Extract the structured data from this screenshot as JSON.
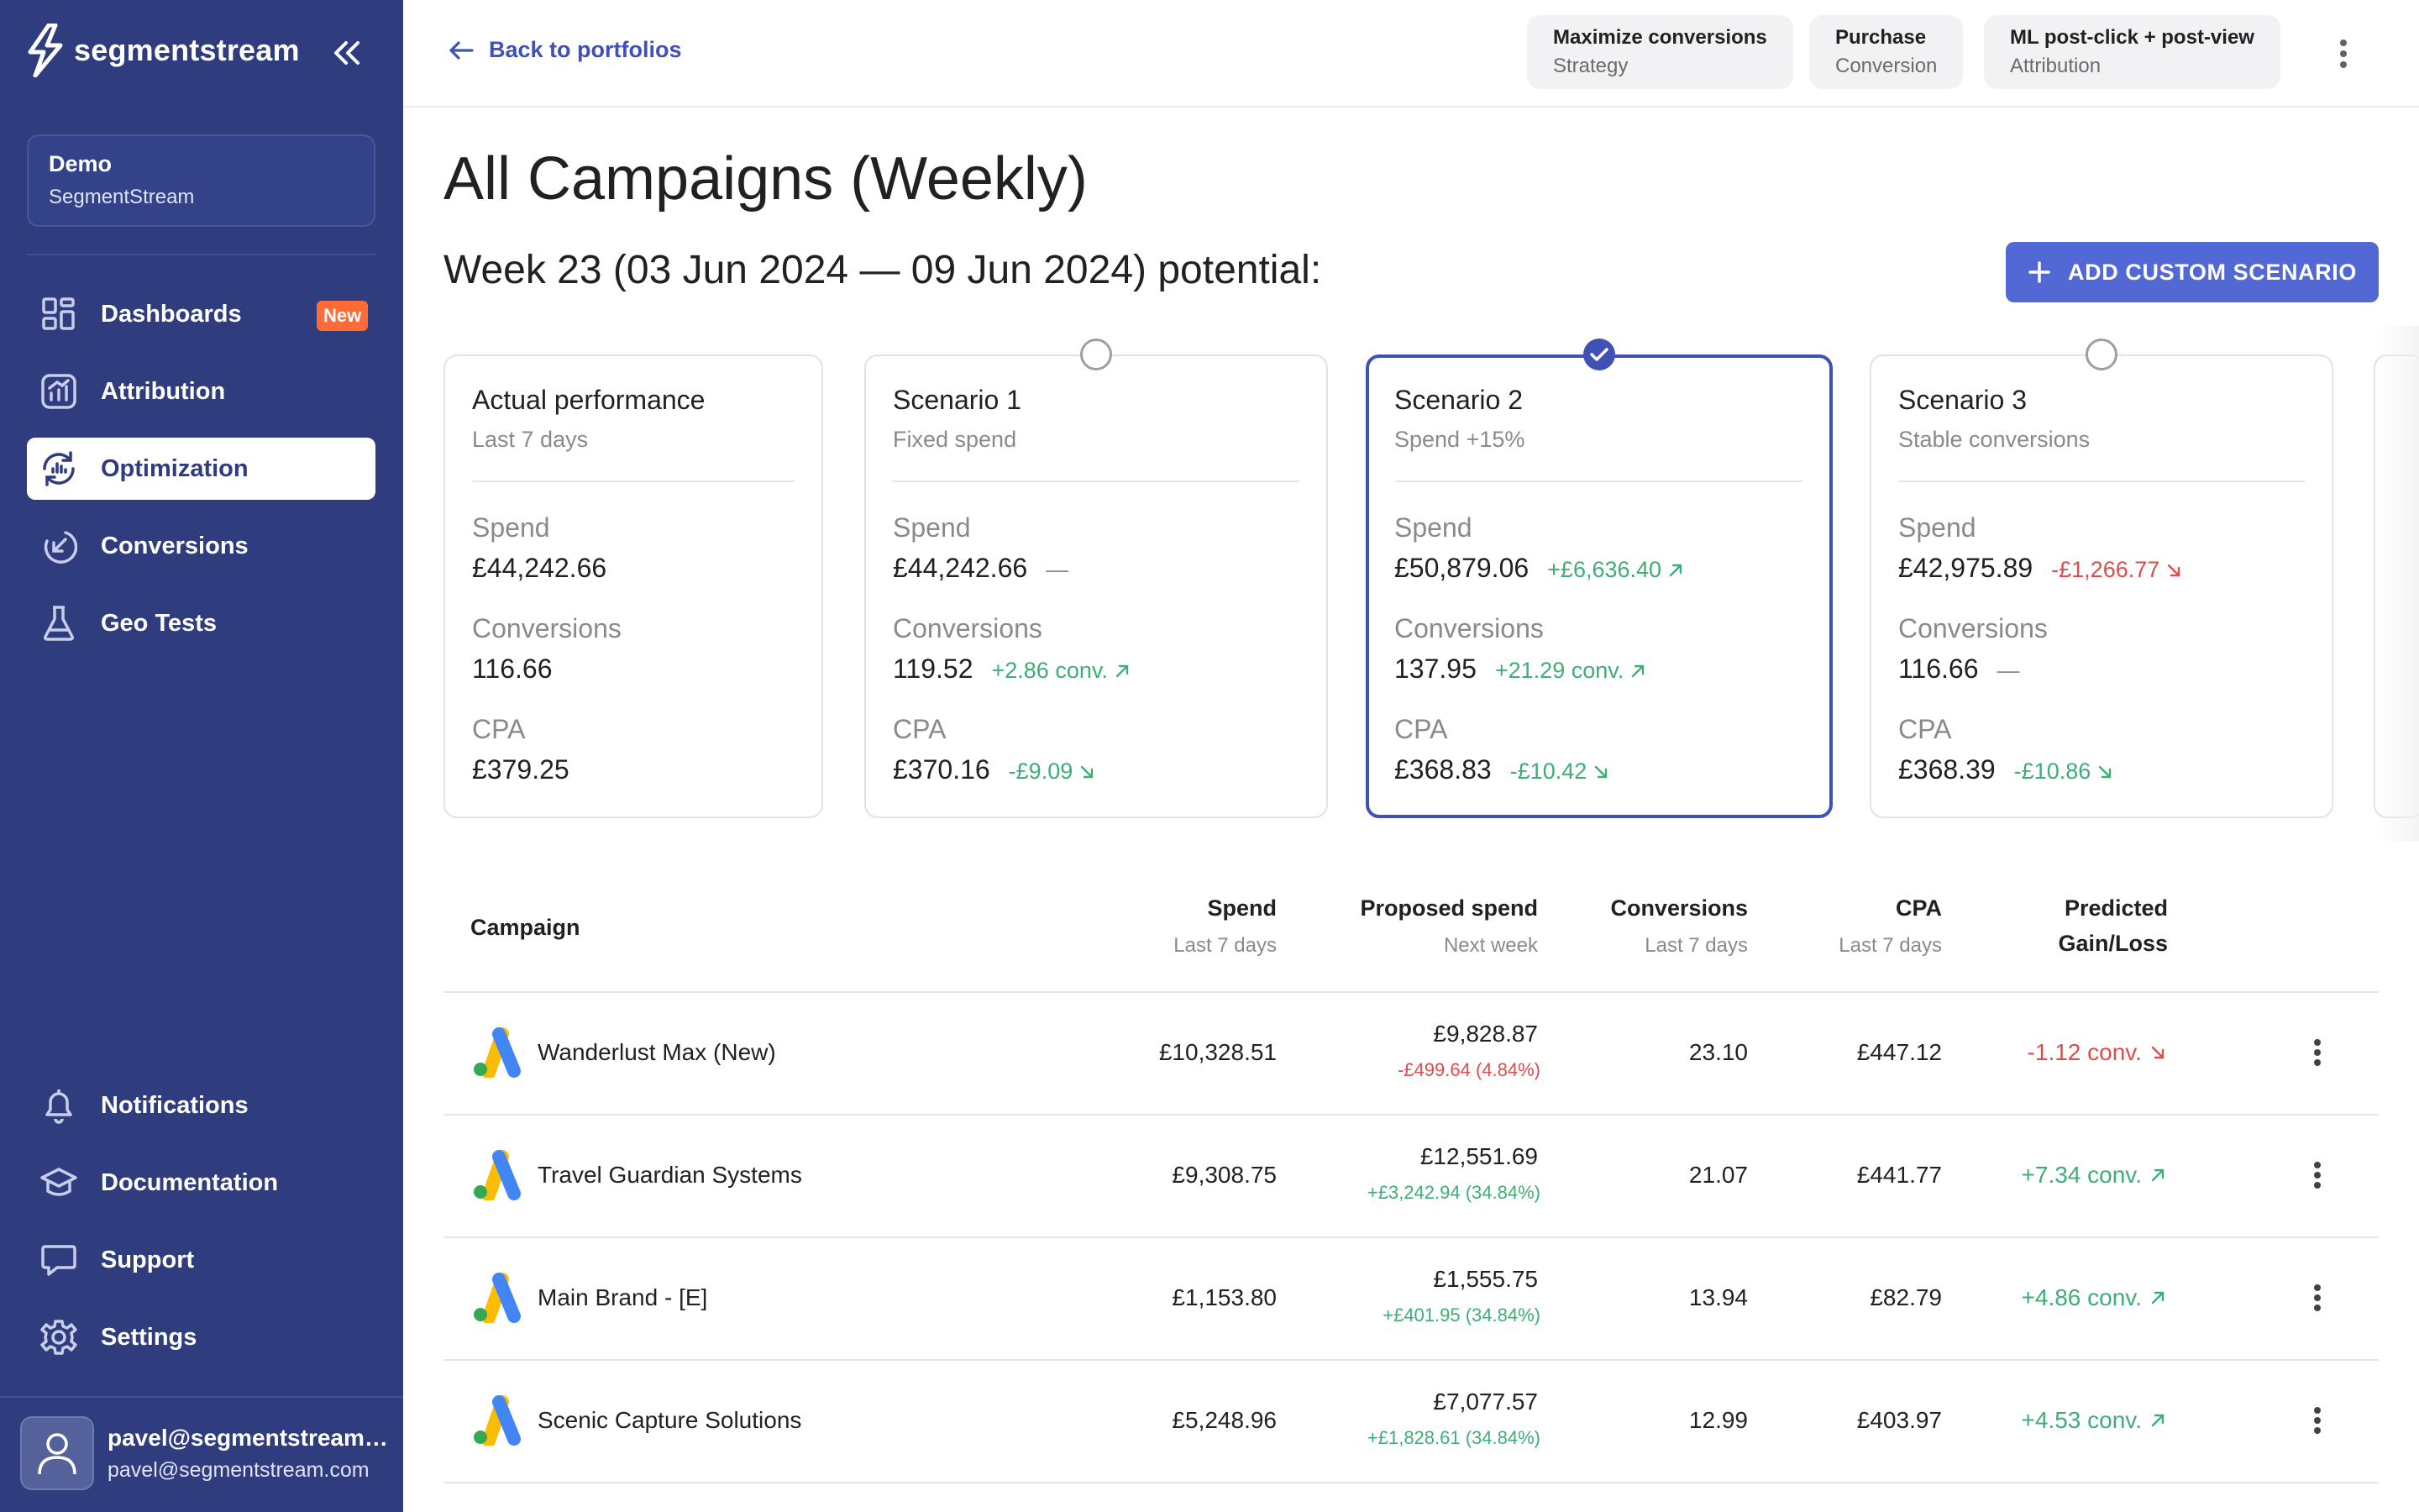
{
  "app": {
    "logo_text": "segmentstream",
    "workspace": {
      "name": "Demo",
      "org": "SegmentStream"
    },
    "nav_top": [
      {
        "label": "Dashboards",
        "icon": "dashboard-grid-icon",
        "badge": "New",
        "active": false
      },
      {
        "label": "Attribution",
        "icon": "attribution-chart-icon",
        "active": false
      },
      {
        "label": "Optimization",
        "icon": "optimization-cycle-icon",
        "active": true
      },
      {
        "label": "Conversions",
        "icon": "conversions-arrow-icon",
        "active": false
      },
      {
        "label": "Geo Tests",
        "icon": "flask-icon",
        "active": false
      }
    ],
    "nav_bottom": [
      {
        "label": "Notifications",
        "icon": "bell-icon"
      },
      {
        "label": "Documentation",
        "icon": "graduation-cap-icon"
      },
      {
        "label": "Support",
        "icon": "chat-bubble-icon"
      },
      {
        "label": "Settings",
        "icon": "gear-icon"
      }
    ],
    "user": {
      "name": "pavel@segmentstream.com",
      "email": "pavel@segmentstream.com"
    }
  },
  "topbar": {
    "back_label": "Back to portfolios",
    "chips": [
      {
        "title": "Maximize conversions",
        "sub": "Strategy"
      },
      {
        "title": "Purchase",
        "sub": "Conversion"
      },
      {
        "title": "ML post-click + post-view",
        "sub": "Attribution"
      }
    ]
  },
  "page": {
    "title": "All Campaigns (Weekly)",
    "subtitle": "Week 23 (03 Jun 2024 — 09 Jun 2024) potential:",
    "add_button": "ADD CUSTOM SCENARIO"
  },
  "metric_labels": {
    "spend": "Spend",
    "conversions": "Conversions",
    "cpa": "CPA"
  },
  "scenarios": [
    {
      "title": "Actual performance",
      "sub": "Last 7 days",
      "spend": "£44,242.66",
      "spend_delta": "",
      "spend_dir": "",
      "conversions": "116.66",
      "conv_delta": "",
      "conv_dir": "",
      "cpa": "£379.25",
      "cpa_delta": "",
      "cpa_dir": "",
      "selectable": false,
      "selected": false
    },
    {
      "title": "Scenario 1",
      "sub": "Fixed spend",
      "spend": "£44,242.66",
      "spend_delta": "—",
      "spend_dir": "flat",
      "conversions": "119.52",
      "conv_delta": "+2.86 conv.",
      "conv_dir": "up-good",
      "cpa": "£370.16",
      "cpa_delta": "-£9.09",
      "cpa_dir": "down-good",
      "selectable": true,
      "selected": false
    },
    {
      "title": "Scenario 2",
      "sub": "Spend +15%",
      "spend": "£50,879.06",
      "spend_delta": "+£6,636.40",
      "spend_dir": "up-good",
      "conversions": "137.95",
      "conv_delta": "+21.29 conv.",
      "conv_dir": "up-good",
      "cpa": "£368.83",
      "cpa_delta": "-£10.42",
      "cpa_dir": "down-good",
      "selectable": true,
      "selected": true
    },
    {
      "title": "Scenario 3",
      "sub": "Stable conversions",
      "spend": "£42,975.89",
      "spend_delta": "-£1,266.77",
      "spend_dir": "down-bad",
      "conversions": "116.66",
      "conv_delta": "—",
      "conv_dir": "flat",
      "cpa": "£368.39",
      "cpa_delta": "-£10.86",
      "cpa_dir": "down-good",
      "selectable": true,
      "selected": false
    }
  ],
  "table": {
    "headers": {
      "campaign": "Campaign",
      "spend": "Spend",
      "spend_sub": "Last 7 days",
      "proposed": "Proposed spend",
      "proposed_sub": "Next week",
      "conversions": "Conversions",
      "conversions_sub": "Last 7 days",
      "cpa": "CPA",
      "cpa_sub": "Last 7 days",
      "gain_line1": "Predicted",
      "gain_line2": "Gain/Loss"
    },
    "rows": [
      {
        "name": "Wanderlust Max (New)",
        "spend": "£10,328.51",
        "proposed": "£9,828.87",
        "proposed_delta": "-£499.64 (4.84%)",
        "delta_dir": "down",
        "conversions": "23.10",
        "cpa": "£447.12",
        "gain": "-1.12 conv.",
        "gain_dir": "down"
      },
      {
        "name": "Travel Guardian Systems",
        "spend": "£9,308.75",
        "proposed": "£12,551.69",
        "proposed_delta": "+£3,242.94 (34.84%)",
        "delta_dir": "up",
        "conversions": "21.07",
        "cpa": "£441.77",
        "gain": "+7.34 conv.",
        "gain_dir": "up"
      },
      {
        "name": "Main Brand - [E]",
        "spend": "£1,153.80",
        "proposed": "£1,555.75",
        "proposed_delta": "+£401.95 (34.84%)",
        "delta_dir": "up",
        "conversions": "13.94",
        "cpa": "£82.79",
        "gain": "+4.86 conv.",
        "gain_dir": "up"
      },
      {
        "name": "Scenic Capture Solutions",
        "spend": "£5,248.96",
        "proposed": "£7,077.57",
        "proposed_delta": "+£1,828.61 (34.84%)",
        "delta_dir": "up",
        "conversions": "12.99",
        "cpa": "£403.97",
        "gain": "+4.53 conv.",
        "gain_dir": "up"
      }
    ]
  },
  "colors": {
    "sidebar": "#2f3c7e",
    "accent": "#3f51b5",
    "button": "#5268d4",
    "positive": "#3fae75",
    "negative": "#e24b4b",
    "badge": "#ff6b35"
  }
}
